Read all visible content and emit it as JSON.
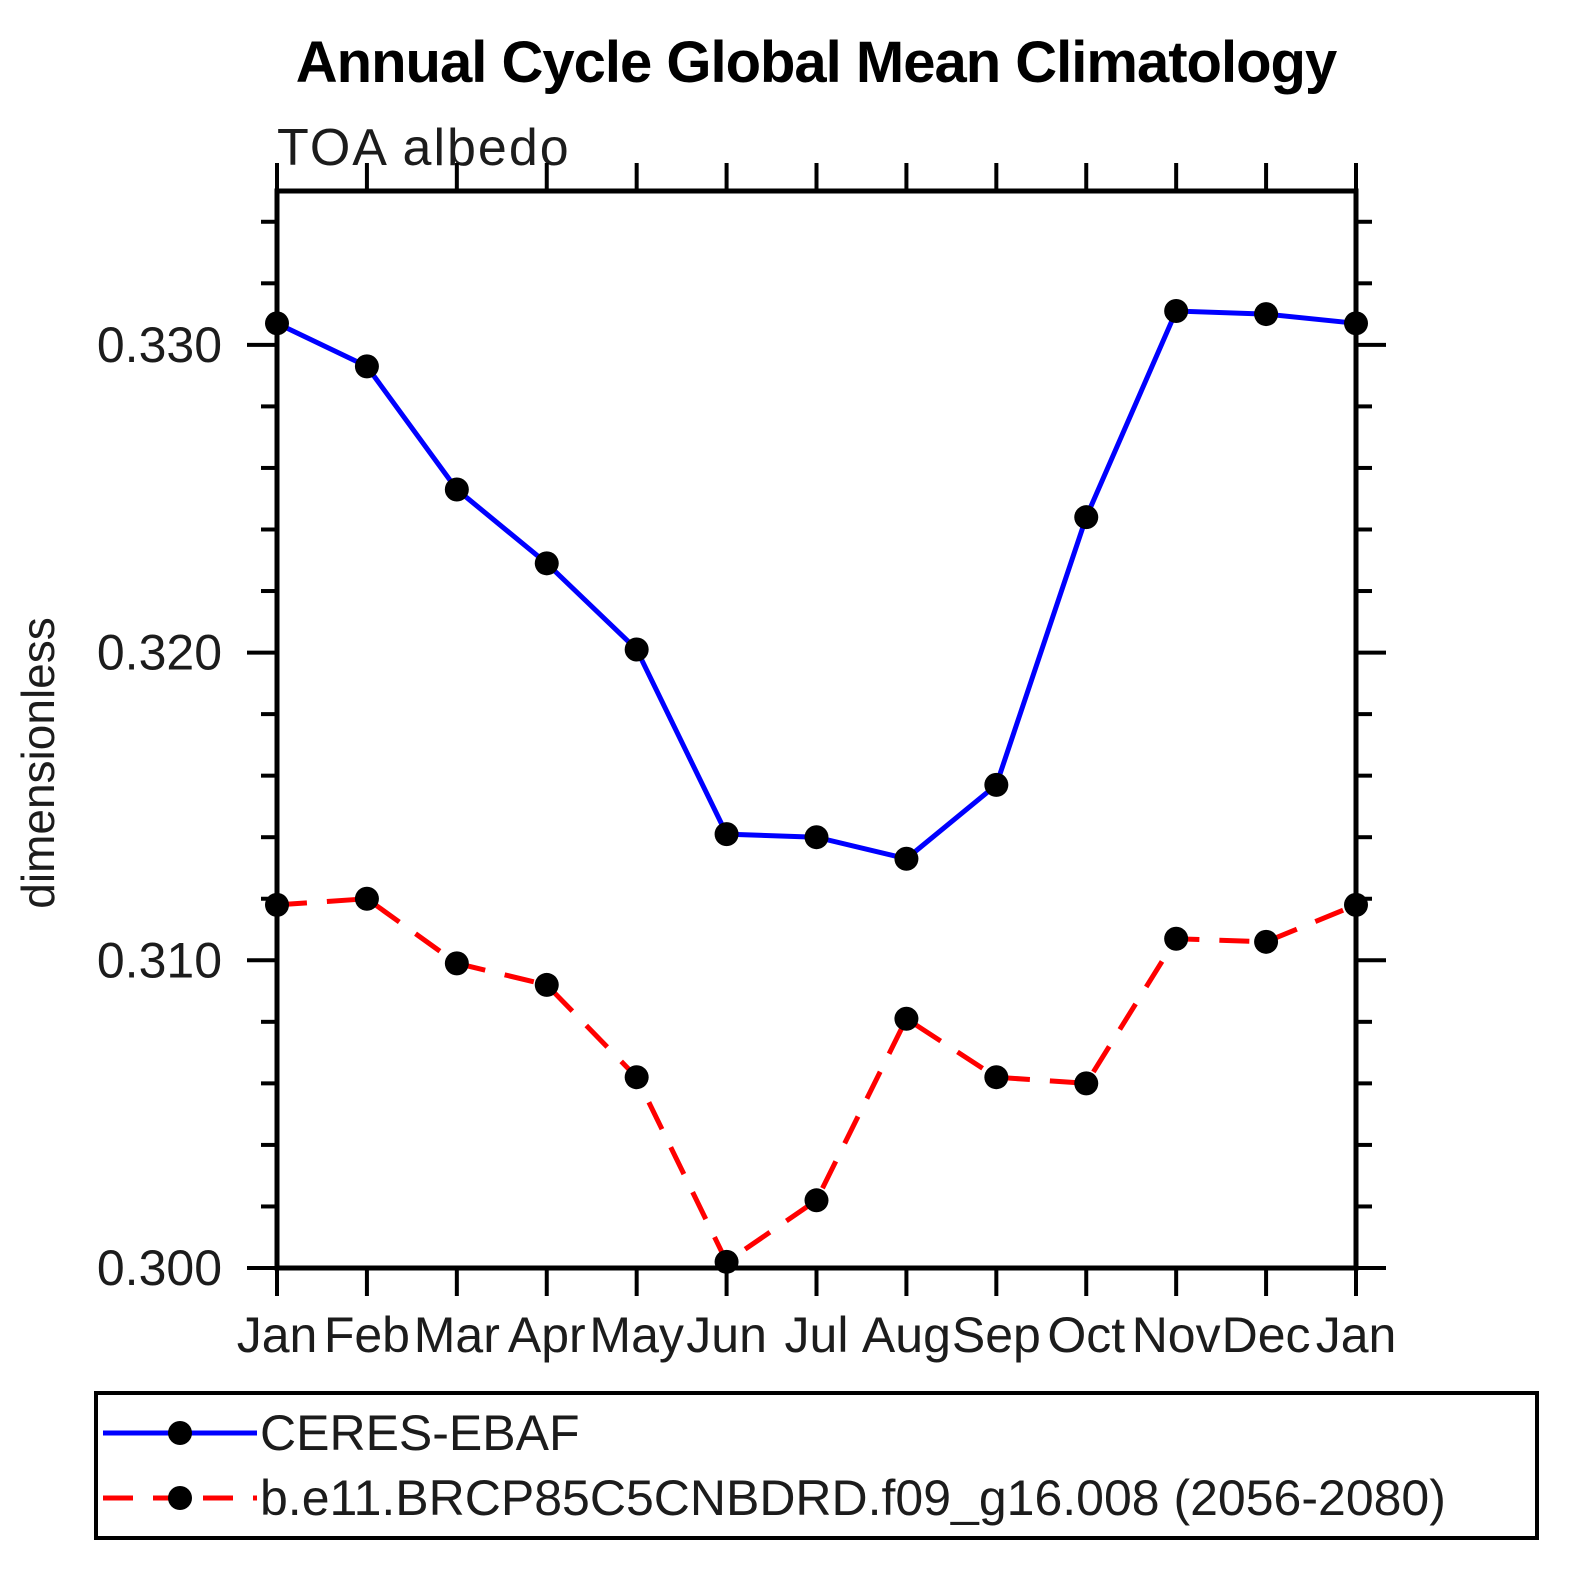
{
  "chart_data": {
    "type": "line",
    "title": "Annual Cycle Global Mean Climatology",
    "subtitle": "TOA albedo",
    "ylabel": "dimensionless",
    "xlabel": "",
    "categories": [
      "Jan",
      "Feb",
      "Mar",
      "Apr",
      "May",
      "Jun",
      "Jul",
      "Aug",
      "Sep",
      "Oct",
      "Nov",
      "Dec",
      "Jan"
    ],
    "series": [
      {
        "name": "CERES-EBAF",
        "color": "#0000ff",
        "line_style": "solid",
        "marker": "circle",
        "marker_color": "#000000",
        "values": [
          0.3307,
          0.3293,
          0.3253,
          0.3229,
          0.3201,
          0.3141,
          0.314,
          0.3133,
          0.3157,
          0.3244,
          0.3311,
          0.331,
          0.3307
        ]
      },
      {
        "name": "b.e11.BRCP85C5CNBDRD.f09_g16.008 (2056-2080)",
        "color": "#ff0000",
        "line_style": "dashed",
        "marker": "circle",
        "marker_color": "#000000",
        "values": [
          0.3118,
          0.312,
          0.3099,
          0.3092,
          0.3062,
          0.3002,
          0.3022,
          0.3081,
          0.3062,
          0.306,
          0.3107,
          0.3106,
          0.3118
        ]
      }
    ],
    "ylim": [
      0.3,
      0.335
    ],
    "y_major_ticks": [
      0.3,
      0.31,
      0.32,
      0.33
    ],
    "y_minor_ticks": [
      0.302,
      0.304,
      0.306,
      0.308,
      0.312,
      0.314,
      0.316,
      0.318,
      0.322,
      0.324,
      0.326,
      0.328,
      0.332,
      0.334
    ],
    "y_tick_decimals": 3,
    "grid": false,
    "legend_position": "bottom",
    "axis_color": "#000000"
  }
}
